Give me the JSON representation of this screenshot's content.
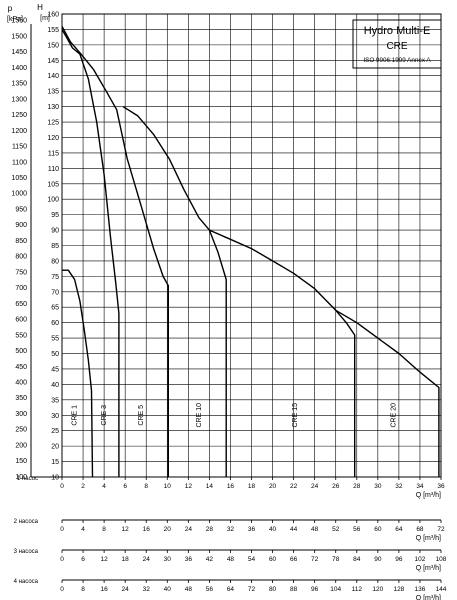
{
  "chart_data": {
    "type": "line",
    "legend": {
      "title": "Hydro Multi-E",
      "subtitle": "CRE",
      "standard": "ISO 9906:1999 Annex A"
    },
    "axes": {
      "p_unit_label": "p",
      "p_unit": "[kPa]",
      "h_unit_label": "H",
      "h_unit": "[m]",
      "p_ticks": [
        100,
        150,
        200,
        250,
        300,
        350,
        400,
        450,
        500,
        550,
        600,
        650,
        700,
        750,
        800,
        850,
        900,
        950,
        1000,
        1050,
        1100,
        1150,
        1200,
        1250,
        1300,
        1350,
        1400,
        1450,
        1500,
        1550
      ],
      "h_ticks": [
        10,
        15,
        20,
        25,
        30,
        35,
        40,
        45,
        50,
        55,
        60,
        65,
        70,
        75,
        80,
        85,
        90,
        95,
        100,
        105,
        110,
        115,
        120,
        125,
        130,
        135,
        140,
        145,
        150,
        155,
        160
      ],
      "ylim_h": [
        10,
        160
      ],
      "q_axis_label": "Q [m³/h]",
      "q_scales": [
        {
          "label": "1 насос",
          "ticks": [
            "0",
            "2",
            "4",
            "6",
            "8",
            "10",
            "12",
            "14",
            "16",
            "18",
            "20",
            "22",
            "24",
            "26",
            "28",
            "30",
            "32",
            "34",
            "36"
          ],
          "max": 36
        },
        {
          "label": "2 насоса",
          "ticks": [
            "0",
            "4",
            "8",
            "12",
            "16",
            "20",
            "24",
            "28",
            "32",
            "36",
            "40",
            "44",
            "48",
            "52",
            "56",
            "60",
            "64",
            "68",
            "72"
          ],
          "max": 72
        },
        {
          "label": "3 насоса",
          "ticks": [
            "0",
            "6",
            "12",
            "18",
            "24",
            "30",
            "36",
            "42",
            "48",
            "54",
            "60",
            "66",
            "72",
            "78",
            "84",
            "90",
            "96",
            "102",
            "108"
          ],
          "max": 108
        },
        {
          "label": "4 насоса",
          "ticks": [
            "0",
            "8",
            "16",
            "24",
            "32",
            "40",
            "48",
            "56",
            "64",
            "72",
            "80",
            "88",
            "96",
            "104",
            "112",
            "120",
            "128",
            "136",
            "144"
          ],
          "max": 144
        }
      ]
    },
    "series": [
      {
        "name": "CRE 1",
        "label_x": 1.4,
        "points": [
          [
            0,
            77
          ],
          [
            0.6,
            77
          ],
          [
            1.2,
            74
          ],
          [
            1.7,
            67
          ],
          [
            2.1,
            58
          ],
          [
            2.5,
            48
          ],
          [
            2.8,
            38
          ],
          [
            2.9,
            10
          ]
        ]
      },
      {
        "name": "CRE 3",
        "label_x": 4.2,
        "points": [
          [
            0,
            155
          ],
          [
            0.5,
            152
          ],
          [
            1.0,
            149
          ],
          [
            1.7,
            147
          ],
          [
            2.5,
            139
          ],
          [
            3.3,
            125
          ],
          [
            4.0,
            108
          ],
          [
            4.6,
            88
          ],
          [
            5.1,
            73
          ],
          [
            5.4,
            63
          ],
          [
            5.4,
            10
          ]
        ]
      },
      {
        "name": "CRE 5",
        "label_x": 7.7,
        "points": [
          [
            0,
            156
          ],
          [
            0.8,
            151
          ],
          [
            1.8,
            147
          ],
          [
            3.0,
            142
          ],
          [
            4.2,
            135
          ],
          [
            5.2,
            129
          ],
          [
            6.2,
            113
          ],
          [
            7.5,
            98
          ],
          [
            8.7,
            84
          ],
          [
            9.6,
            75
          ],
          [
            10.1,
            72
          ],
          [
            10.1,
            10
          ]
        ]
      },
      {
        "name": "CRE 10",
        "label_x": 13.2,
        "points": [
          [
            5.8,
            130
          ],
          [
            7.2,
            127
          ],
          [
            8.7,
            121
          ],
          [
            10.2,
            113
          ],
          [
            11.6,
            103
          ],
          [
            13.0,
            94
          ],
          [
            14.0,
            90
          ],
          [
            14.8,
            83
          ],
          [
            15.6,
            74
          ],
          [
            15.6,
            10
          ]
        ]
      },
      {
        "name": "CRE 15",
        "label_x": 22.3,
        "points": [
          [
            14.0,
            90
          ],
          [
            16.0,
            87
          ],
          [
            18.0,
            84
          ],
          [
            20.0,
            80
          ],
          [
            22.0,
            76
          ],
          [
            24.0,
            71
          ],
          [
            26.0,
            64
          ],
          [
            27.0,
            60
          ],
          [
            27.8,
            56
          ],
          [
            27.8,
            10
          ]
        ]
      },
      {
        "name": "CRE 20",
        "label_x": 31.7,
        "points": [
          [
            26.0,
            64
          ],
          [
            28.0,
            60
          ],
          [
            30.0,
            55
          ],
          [
            32.0,
            50
          ],
          [
            34.0,
            44
          ],
          [
            35.8,
            39
          ],
          [
            35.8,
            10
          ]
        ]
      }
    ]
  }
}
